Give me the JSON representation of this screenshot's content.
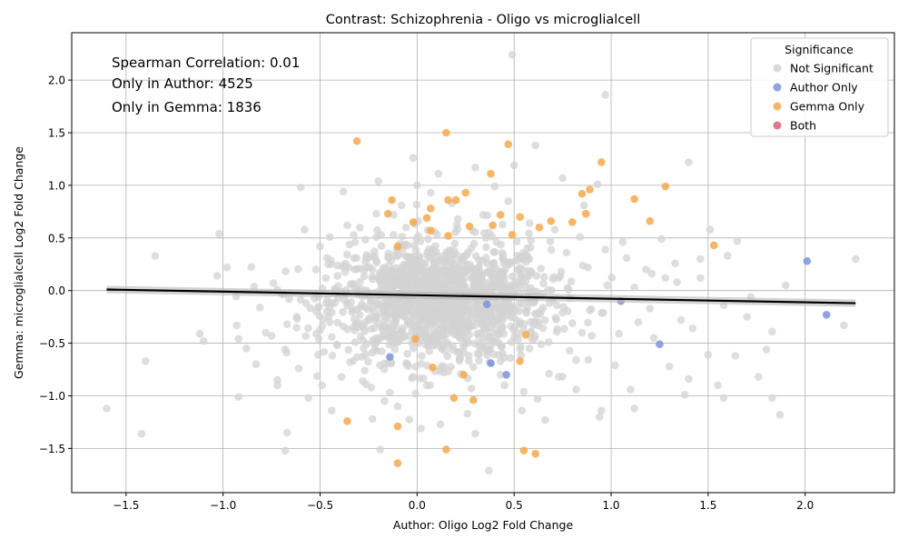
{
  "chart_data": {
    "type": "scatter",
    "title": "Contrast: Schizophrenia - Oligo vs microglialcell",
    "xlabel": "Author: Oligo Log2 Fold Change",
    "ylabel": "Gemma: microglialcell Log2 Fold Change",
    "xlim": [
      -1.78,
      2.46
    ],
    "ylim": [
      -1.92,
      2.45
    ],
    "xticks": [
      -1.5,
      -1.0,
      -0.5,
      0.0,
      0.5,
      1.0,
      1.5,
      2.0
    ],
    "xtick_labels": [
      "−1.5",
      "−1.0",
      "−0.5",
      "0.0",
      "0.5",
      "1.0",
      "1.5",
      "2.0"
    ],
    "yticks": [
      -1.5,
      -1.0,
      -0.5,
      0.0,
      0.5,
      1.0,
      1.5,
      2.0
    ],
    "ytick_labels": [
      "−1.5",
      "−1.0",
      "−0.5",
      "0.0",
      "0.5",
      "1.0",
      "1.5",
      "2.0"
    ],
    "grid": true,
    "annotations": [
      "Spearman Correlation: 0.01",
      "Only in Author: 4525",
      "Only in Gemma: 1836"
    ],
    "legend": {
      "title": "Significance",
      "position": "top-right",
      "entries": [
        {
          "label": "Not Significant",
          "color": "#d3d3d3"
        },
        {
          "label": "Author Only",
          "color": "#7b93de"
        },
        {
          "label": "Gemma Only",
          "color": "#f6a94c"
        },
        {
          "label": "Both",
          "color": "#dd5f74"
        }
      ]
    },
    "regression": {
      "x": [
        -1.6,
        2.26
      ],
      "y": [
        0.01,
        -0.12
      ],
      "color": "#000000"
    },
    "series": [
      {
        "name": "Not Significant",
        "color": "#d3d3d3",
        "points": [
          [
            0.49,
            2.24
          ],
          [
            0.97,
            1.86
          ],
          [
            1.4,
            1.22
          ],
          [
            0.61,
            1.38
          ],
          [
            -0.02,
            1.26
          ],
          [
            0.3,
            1.17
          ],
          [
            0.5,
            1.19
          ],
          [
            0.11,
            1.11
          ],
          [
            0.75,
            1.07
          ],
          [
            -0.2,
            1.04
          ],
          [
            0.0,
            1.0
          ],
          [
            0.93,
            1.01
          ],
          [
            0.4,
            0.99
          ],
          [
            -0.38,
            0.94
          ],
          [
            -1.6,
            -1.12
          ],
          [
            -1.42,
            -1.36
          ],
          [
            -1.4,
            -0.67
          ],
          [
            -1.35,
            0.33
          ],
          [
            -1.12,
            -0.41
          ],
          [
            -1.1,
            -0.48
          ],
          [
            -1.02,
            0.54
          ],
          [
            -1.03,
            0.14
          ],
          [
            -0.98,
            0.22
          ],
          [
            -0.93,
            -0.33
          ],
          [
            -0.92,
            -1.01
          ],
          [
            -0.88,
            -0.55
          ],
          [
            -0.84,
            0.04
          ],
          [
            -0.83,
            -0.7
          ],
          [
            -0.78,
            -0.4
          ],
          [
            -0.75,
            -0.43
          ],
          [
            -0.72,
            -0.85
          ],
          [
            -0.72,
            -0.9
          ],
          [
            -0.68,
            -0.56
          ],
          [
            -0.67,
            -0.32
          ],
          [
            -0.68,
            -1.52
          ],
          [
            -0.67,
            -1.35
          ],
          [
            -0.62,
            -0.25
          ],
          [
            -0.6,
            0.98
          ],
          [
            -0.56,
            -1.02
          ],
          [
            -0.52,
            -0.41
          ],
          [
            -0.5,
            0.42
          ],
          [
            -0.49,
            -0.9
          ],
          [
            -0.45,
            -0.16
          ],
          [
            -0.44,
            -1.14
          ],
          [
            -0.41,
            0.14
          ],
          [
            -0.36,
            0.62
          ],
          [
            -0.33,
            -0.67
          ],
          [
            -0.31,
            0.02
          ],
          [
            -0.28,
            -0.86
          ],
          [
            -0.26,
            0.34
          ],
          [
            -0.23,
            -1.22
          ],
          [
            -0.19,
            -1.51
          ],
          [
            -0.16,
            -0.35
          ],
          [
            -0.12,
            0.72
          ],
          [
            -0.1,
            -1.1
          ],
          [
            -0.05,
            -0.6
          ],
          [
            -0.03,
            0.2
          ],
          [
            0.02,
            -1.31
          ],
          [
            0.05,
            -0.9
          ],
          [
            0.09,
            0.56
          ],
          [
            0.12,
            -1.27
          ],
          [
            0.16,
            -0.12
          ],
          [
            0.21,
            0.68
          ],
          [
            0.26,
            -1.17
          ],
          [
            0.3,
            -1.36
          ],
          [
            0.33,
            -0.24
          ],
          [
            0.37,
            -1.71
          ],
          [
            0.41,
            0.46
          ],
          [
            0.45,
            -0.9
          ],
          [
            0.49,
            -0.05
          ],
          [
            0.54,
            -1.14
          ],
          [
            0.57,
            0.3
          ],
          [
            0.62,
            -1.03
          ],
          [
            0.66,
            -1.23
          ],
          [
            0.7,
            0.11
          ],
          [
            0.73,
            -0.82
          ],
          [
            0.77,
            0.36
          ],
          [
            0.82,
            -0.66
          ],
          [
            0.86,
            0.81
          ],
          [
            0.9,
            -0.43
          ],
          [
            0.94,
            -1.2
          ],
          [
            0.98,
            0.05
          ],
          [
            1.02,
            -0.71
          ],
          [
            1.06,
            0.46
          ],
          [
            1.1,
            -0.94
          ],
          [
            1.14,
            -0.3
          ],
          [
            1.18,
            0.2
          ],
          [
            1.22,
            -0.45
          ],
          [
            1.26,
            0.49
          ],
          [
            1.3,
            -0.72
          ],
          [
            1.34,
            0.08
          ],
          [
            1.38,
            -0.99
          ],
          [
            1.42,
            -0.36
          ],
          [
            1.46,
            0.3
          ],
          [
            1.5,
            -0.61
          ],
          [
            1.51,
            0.58
          ],
          [
            1.55,
            -0.9
          ],
          [
            1.6,
            0.33
          ],
          [
            1.64,
            -0.62
          ],
          [
            1.65,
            0.47
          ],
          [
            1.72,
            -0.06
          ],
          [
            1.76,
            -0.82
          ],
          [
            1.8,
            -0.56
          ],
          [
            1.83,
            -1.02
          ],
          [
            1.87,
            -1.18
          ],
          [
            1.9,
            0.05
          ],
          [
            2.2,
            -0.33
          ],
          [
            2.26,
            0.3
          ],
          [
            1.58,
            -1.02
          ],
          [
            1.4,
            -0.84
          ],
          [
            1.12,
            -1.12
          ],
          [
            0.95,
            -1.14
          ],
          [
            0.82,
            -0.94
          ],
          [
            0.68,
            -0.79
          ],
          [
            0.55,
            -0.96
          ],
          [
            0.43,
            -0.67
          ],
          [
            0.28,
            -0.93
          ],
          [
            0.12,
            -0.74
          ],
          [
            -0.02,
            -0.82
          ],
          [
            -0.14,
            -0.97
          ],
          [
            -0.27,
            -0.76
          ],
          [
            -0.39,
            -0.82
          ],
          [
            -0.51,
            -0.61
          ],
          [
            -0.61,
            -0.74
          ],
          [
            -0.58,
            0.58
          ],
          [
            -0.45,
            0.51
          ],
          [
            -0.32,
            0.46
          ],
          [
            -0.21,
            0.73
          ],
          [
            -0.08,
            0.81
          ],
          [
            0.07,
            0.93
          ],
          [
            0.18,
            0.83
          ],
          [
            0.34,
            0.72
          ],
          [
            0.47,
            0.85
          ],
          [
            0.58,
            0.64
          ],
          [
            0.71,
            0.58
          ],
          [
            0.84,
            0.51
          ],
          [
            0.97,
            0.39
          ],
          [
            1.08,
            0.31
          ],
          [
            1.21,
            0.16
          ],
          [
            1.33,
            0.26
          ],
          [
            1.46,
            0.12
          ],
          [
            1.58,
            -0.14
          ],
          [
            1.7,
            -0.25
          ],
          [
            1.83,
            -0.39
          ],
          [
            -0.92,
            -0.46
          ],
          [
            -0.81,
            -0.16
          ],
          [
            -0.74,
            0.07
          ],
          [
            -0.66,
            -0.08
          ],
          [
            -0.52,
            -0.2
          ],
          [
            -0.47,
            0.12
          ],
          [
            -0.38,
            -0.34
          ],
          [
            -0.29,
            0.21
          ],
          [
            -0.21,
            -0.45
          ],
          [
            -0.12,
            0.1
          ],
          [
            -0.04,
            -0.29
          ],
          [
            0.04,
            0.25
          ],
          [
            0.13,
            -0.53
          ],
          [
            0.22,
            0.04
          ],
          [
            0.31,
            -0.41
          ],
          [
            0.4,
            0.15
          ],
          [
            0.48,
            -0.64
          ],
          [
            0.56,
            0.09
          ],
          [
            0.64,
            -0.51
          ],
          [
            0.72,
            -0.14
          ],
          [
            0.8,
            -0.31
          ],
          [
            0.88,
            0.22
          ],
          [
            0.96,
            -0.21
          ],
          [
            1.04,
            -0.41
          ],
          [
            1.12,
            0.03
          ],
          [
            1.2,
            -0.17
          ],
          [
            1.28,
            0.12
          ],
          [
            1.36,
            -0.28
          ],
          [
            -0.25,
            -0.05
          ],
          [
            -0.18,
            0.15
          ],
          [
            -0.11,
            -0.22
          ],
          [
            -0.06,
            0.33
          ],
          [
            0.01,
            -0.11
          ],
          [
            0.08,
            0.18
          ],
          [
            0.14,
            -0.3
          ],
          [
            0.19,
            0.38
          ],
          [
            0.25,
            -0.15
          ],
          [
            0.29,
            0.12
          ],
          [
            0.35,
            -0.35
          ],
          [
            0.39,
            0.24
          ],
          [
            -0.31,
            -0.18
          ],
          [
            -0.22,
            -0.28
          ],
          [
            -0.15,
            0.05
          ],
          [
            -0.08,
            -0.38
          ],
          [
            0.03,
            0.02
          ],
          [
            0.1,
            -0.2
          ],
          [
            0.17,
            0.08
          ],
          [
            0.23,
            -0.45
          ],
          [
            0.32,
            -0.02
          ],
          [
            0.44,
            -0.22
          ],
          [
            0.52,
            0.2
          ],
          [
            0.6,
            -0.3
          ]
        ]
      },
      {
        "name": "Author Only",
        "color": "#7b93de",
        "points": [
          [
            2.01,
            0.28
          ],
          [
            2.11,
            -0.23
          ],
          [
            1.25,
            -0.51
          ],
          [
            1.05,
            -0.1
          ],
          [
            0.46,
            -0.8
          ],
          [
            0.38,
            -0.69
          ],
          [
            -0.14,
            -0.63
          ],
          [
            0.36,
            -0.13
          ]
        ]
      },
      {
        "name": "Gemma Only",
        "color": "#f6a94c",
        "points": [
          [
            -0.31,
            1.42
          ],
          [
            0.15,
            1.5
          ],
          [
            0.47,
            1.39
          ],
          [
            0.95,
            1.22
          ],
          [
            0.38,
            1.11
          ],
          [
            1.28,
            0.99
          ],
          [
            0.89,
            0.96
          ],
          [
            0.85,
            0.92
          ],
          [
            0.25,
            0.93
          ],
          [
            0.16,
            0.86
          ],
          [
            0.2,
            0.86
          ],
          [
            1.12,
            0.87
          ],
          [
            -0.13,
            0.86
          ],
          [
            0.07,
            0.78
          ],
          [
            -0.15,
            0.73
          ],
          [
            0.87,
            0.73
          ],
          [
            0.43,
            0.72
          ],
          [
            0.53,
            0.7
          ],
          [
            0.05,
            0.69
          ],
          [
            0.69,
            0.66
          ],
          [
            1.2,
            0.66
          ],
          [
            0.8,
            0.65
          ],
          [
            0.63,
            0.6
          ],
          [
            0.27,
            0.61
          ],
          [
            0.39,
            0.62
          ],
          [
            -0.02,
            0.65
          ],
          [
            0.07,
            0.57
          ],
          [
            0.49,
            0.53
          ],
          [
            0.16,
            0.52
          ],
          [
            1.53,
            0.43
          ],
          [
            -0.1,
            0.42
          ],
          [
            0.24,
            -0.8
          ],
          [
            0.53,
            -0.67
          ],
          [
            0.19,
            -1.02
          ],
          [
            0.29,
            -1.04
          ],
          [
            -0.36,
            -1.24
          ],
          [
            -0.1,
            -1.29
          ],
          [
            0.15,
            -1.51
          ],
          [
            0.55,
            -1.52
          ],
          [
            0.61,
            -1.55
          ],
          [
            -0.1,
            -1.64
          ],
          [
            0.08,
            -0.73
          ],
          [
            -0.01,
            -0.46
          ],
          [
            0.56,
            -0.42
          ]
        ]
      },
      {
        "name": "Both",
        "color": "#dd5f74",
        "points": []
      }
    ]
  }
}
